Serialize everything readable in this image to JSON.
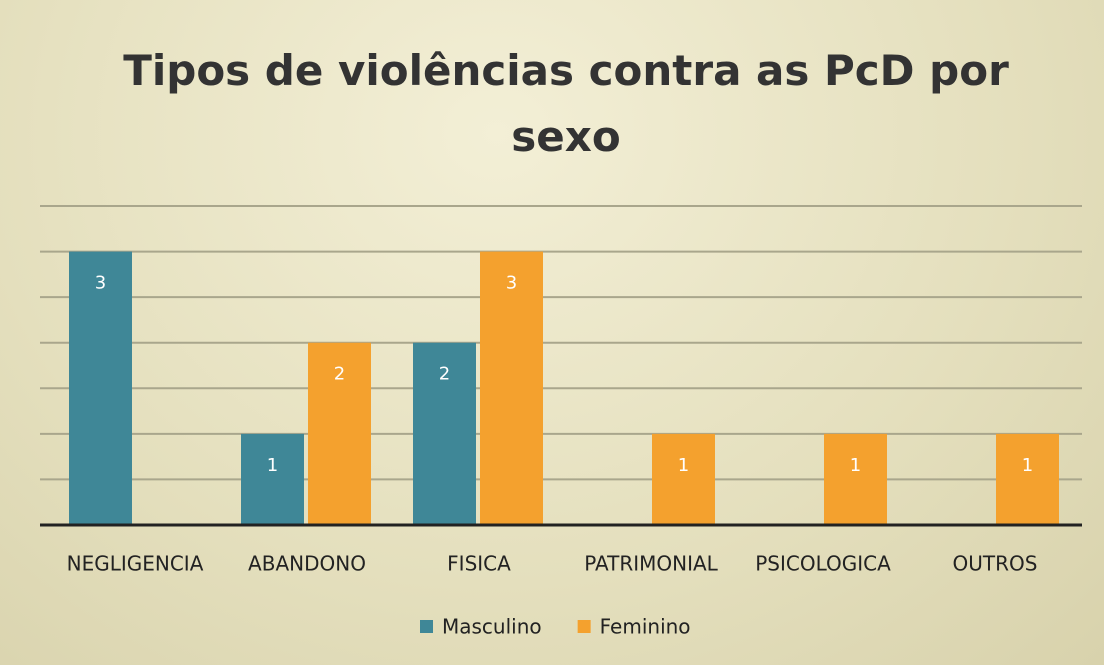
{
  "chart_data": {
    "type": "bar",
    "title": "Tipos de violências contra as PcD por sexo",
    "categories": [
      "NEGLIGENCIA",
      "ABANDONO",
      "FISICA",
      "PATRIMONIAL",
      "PSICOLOGICA",
      "OUTROS"
    ],
    "series": [
      {
        "name": "Masculino",
        "color": "#3f8797",
        "values": [
          3,
          1,
          2,
          null,
          null,
          null
        ]
      },
      {
        "name": "Feminino",
        "color": "#f4a12e",
        "values": [
          null,
          2,
          3,
          1,
          1,
          1
        ]
      }
    ],
    "ylim": [
      0,
      3.5
    ],
    "yticks": [
      0.5,
      1,
      1.5,
      2,
      2.5,
      3,
      3.5
    ],
    "grid": true,
    "legend": "bottom"
  }
}
